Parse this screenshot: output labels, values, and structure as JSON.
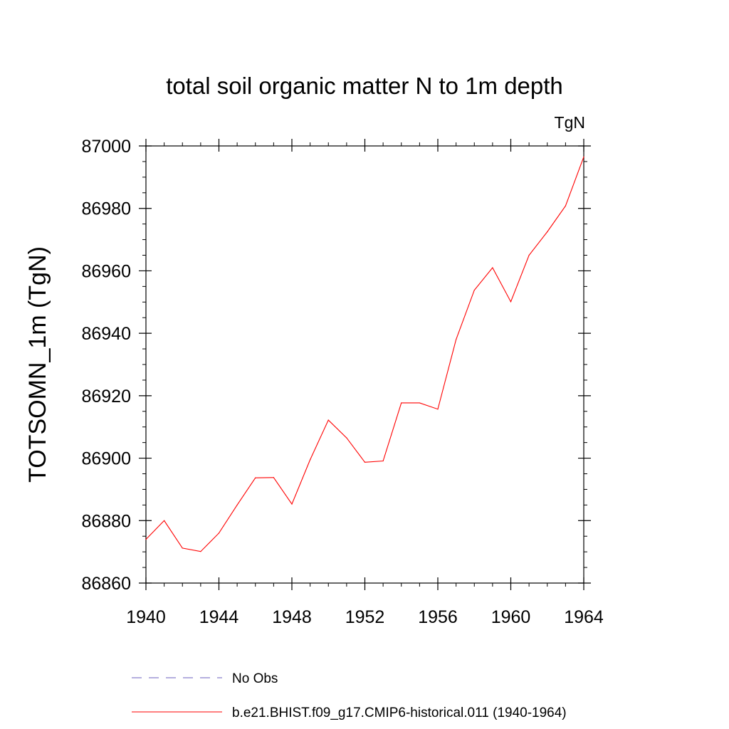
{
  "chart_data": {
    "type": "line",
    "title": "total soil organic matter N to 1m depth",
    "units": "TgN",
    "xlabel": "",
    "ylabel": "TOTSOMN_1m  (TgN)",
    "xlim": [
      1940,
      1964
    ],
    "ylim": [
      86860,
      87000
    ],
    "x_ticks": [
      1940,
      1944,
      1948,
      1952,
      1956,
      1960,
      1964
    ],
    "y_ticks": [
      86860,
      86880,
      86900,
      86920,
      86940,
      86960,
      86980,
      87000
    ],
    "x_minor_step": 1,
    "y_minor_step": 5,
    "grid": false,
    "legend_position": "bottom",
    "series": [
      {
        "name": "No Obs",
        "color": "#6b5fbf",
        "style": "dashed",
        "values": []
      },
      {
        "name": "b.e21.BHIST.f09_g17.CMIP6-historical.011 (1940-1964)",
        "color": "#ff0000",
        "style": "solid",
        "x": [
          1940,
          1941,
          1942,
          1943,
          1944,
          1945,
          1946,
          1947,
          1948,
          1949,
          1950,
          1951,
          1952,
          1953,
          1954,
          1955,
          1956,
          1957,
          1958,
          1959,
          1960,
          1961,
          1962,
          1963,
          1964
        ],
        "values": [
          86874,
          86880,
          86871.2,
          86870.1,
          86876,
          86885,
          86893.7,
          86893.8,
          86885.3,
          86899.5,
          86912.2,
          86906.5,
          86898.7,
          86899.1,
          86917.7,
          86917.7,
          86915.7,
          86938,
          86953.8,
          86961,
          86950.1,
          86965,
          86972.5,
          86980.8,
          86996.5
        ]
      }
    ]
  }
}
